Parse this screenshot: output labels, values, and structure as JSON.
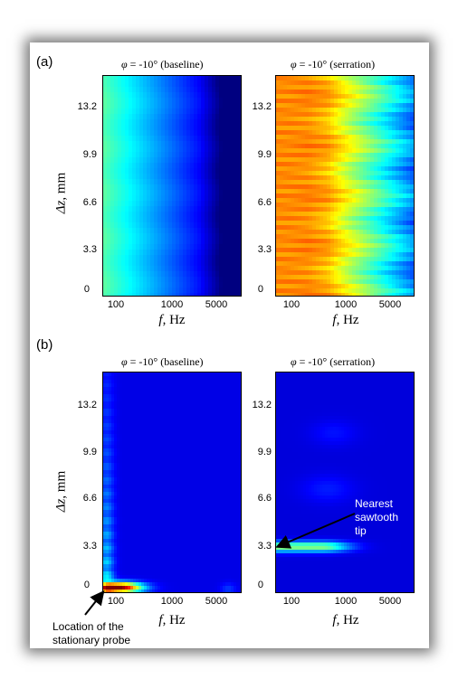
{
  "panels": {
    "a": "(a)",
    "b": "(b)"
  },
  "axis": {
    "xlabel_var": "f",
    "xlabel_unit": ", Hz",
    "ylabel_var": "Δz",
    "ylabel_unit": ", mm",
    "yticks": [
      "13.2",
      "9.9",
      "6.6",
      "3.3",
      "0"
    ],
    "xticks": [
      "100",
      "1000",
      "5000"
    ]
  },
  "annotations": {
    "probe_line1": "Location of the",
    "probe_line2": "stationary probe",
    "tip_line1": "Nearest",
    "tip_line2": "sawtooth",
    "tip_line3": "tip"
  },
  "colors": {
    "colormap": "jet"
  },
  "chart_data": [
    {
      "type": "heatmap",
      "panel": "(a)",
      "title_var": "φ",
      "title_rest": "= -10° (baseline)",
      "xlabel": "f, Hz",
      "ylabel": "Δz, mm",
      "xscale": "log",
      "xlim": [
        50,
        7000
      ],
      "ylim": [
        0,
        14.5
      ],
      "yticks": [
        0,
        3.3,
        6.6,
        9.9,
        13.2
      ],
      "xticks": [
        100,
        1000,
        5000
      ],
      "description_values": {
        "f_hz": [
          60,
          100,
          300,
          1000,
          2000,
          4000,
          7000
        ],
        "relative_level": [
          0.42,
          0.4,
          0.35,
          0.28,
          0.2,
          0.1,
          0.05
        ]
      }
    },
    {
      "type": "heatmap",
      "panel": "(a)",
      "title_var": "φ",
      "title_rest": "= -10° (serration)",
      "xlabel": "f, Hz",
      "ylabel": "Δz, mm",
      "xscale": "log",
      "xlim": [
        50,
        7000
      ],
      "ylim": [
        0,
        14.5
      ],
      "yticks": [
        0,
        3.3,
        6.6,
        9.9,
        13.2
      ],
      "xticks": [
        100,
        1000,
        5000
      ],
      "description_values": {
        "f_hz": [
          60,
          150,
          400,
          1000,
          2000,
          4000,
          7000
        ],
        "relative_level": [
          0.72,
          0.7,
          0.55,
          0.35,
          0.28,
          0.15,
          0.06
        ]
      }
    },
    {
      "type": "heatmap",
      "panel": "(b)",
      "title_var": "φ",
      "title_rest": "= -10° (baseline)",
      "xlabel": "f, Hz",
      "ylabel": "Δz, mm",
      "xscale": "log",
      "xlim": [
        50,
        7000
      ],
      "ylim": [
        0,
        14.5
      ],
      "yticks": [
        0,
        3.3,
        6.6,
        9.9,
        13.2
      ],
      "xticks": [
        100,
        1000,
        5000
      ],
      "description_values": {
        "peak_dz_mm": 0.3,
        "peak_f_hz": [
          50,
          150
        ]
      }
    },
    {
      "type": "heatmap",
      "panel": "(b)",
      "title_var": "φ",
      "title_rest": "= -10° (serration)",
      "xlabel": "f, Hz",
      "ylabel": "Δz, mm",
      "xscale": "log",
      "xlim": [
        50,
        7000
      ],
      "ylim": [
        0,
        14.5
      ],
      "yticks": [
        0,
        3.3,
        6.6,
        9.9,
        13.2
      ],
      "xticks": [
        100,
        1000,
        5000
      ],
      "description_values": {
        "peak_dz_mm": 3.0,
        "peak_f_hz": [
          50,
          1000
        ]
      }
    }
  ]
}
